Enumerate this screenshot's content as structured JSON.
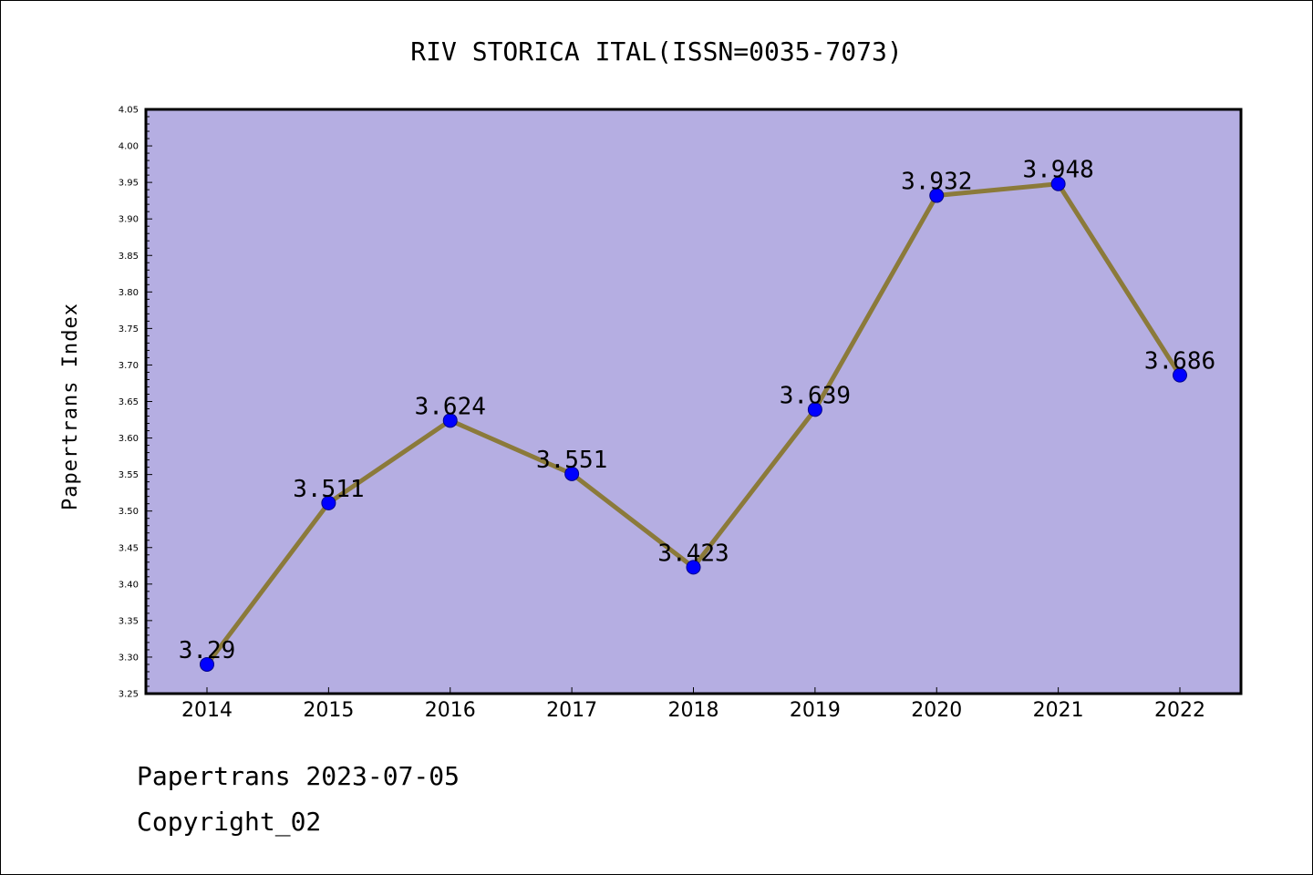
{
  "chart_data": {
    "type": "line",
    "title": "RIV STORICA ITAL(ISSN=0035-7073)",
    "xlabel": "",
    "ylabel": "Papertrans Index",
    "categories": [
      "2014",
      "2015",
      "2016",
      "2017",
      "2018",
      "2019",
      "2020",
      "2021",
      "2022"
    ],
    "values": [
      3.29,
      3.511,
      3.624,
      3.551,
      3.423,
      3.639,
      3.932,
      3.948,
      3.686
    ],
    "data_labels": [
      "3.29",
      "3.511",
      "3.624",
      "3.551",
      "3.423",
      "3.639",
      "3.932",
      "3.948",
      "3.686"
    ],
    "ylim": [
      3.25,
      4.05
    ],
    "yticks": [
      "3.25",
      "3.30",
      "3.35",
      "3.40",
      "3.45",
      "3.50",
      "3.55",
      "3.60",
      "3.65",
      "3.70",
      "3.75",
      "3.80",
      "3.85",
      "3.90",
      "3.95",
      "4.00",
      "4.05"
    ],
    "grid": false,
    "colors": {
      "plot_background": "#b5aee2",
      "line": "#8b7a3a",
      "marker": "#0000ff",
      "marker_edge": "#00008b"
    }
  },
  "footer": {
    "date_text": "Papertrans 2023-07-05",
    "copyright_text": "Copyright_02"
  }
}
